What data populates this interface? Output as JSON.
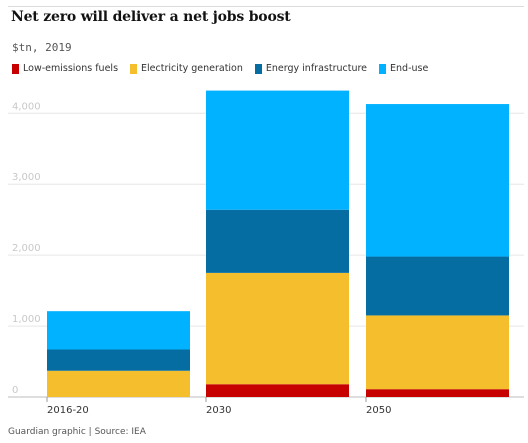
{
  "header": {
    "title": "Net zero will deliver a net jobs boost",
    "subtitle": "$tn, 2019"
  },
  "footer": {
    "source": "Guardian graphic | Source: IEA"
  },
  "chart_data": {
    "type": "bar",
    "stacked": true,
    "title": "Net zero will deliver a net jobs boost",
    "subtitle": "$tn, 2019",
    "categories": [
      "2016-20",
      "2030",
      "2050"
    ],
    "series": [
      {
        "name": "Low-emissions fuels",
        "color": "#c70000",
        "values": [
          0,
          180,
          110
        ]
      },
      {
        "name": "Electricity generation",
        "color": "#f5be2c",
        "values": [
          370,
          1570,
          1040
        ]
      },
      {
        "name": "Energy infrastructure",
        "color": "#056da1",
        "values": [
          300,
          890,
          830
        ]
      },
      {
        "name": "End-use",
        "color": "#00b2ff",
        "values": [
          540,
          1680,
          2150
        ]
      }
    ],
    "y_ticks": [
      0,
      1000,
      2000,
      3000,
      4000
    ],
    "y_tick_labels": [
      "0",
      "1,000",
      "2,000",
      "3,000",
      "4,000"
    ],
    "ylim": [
      0,
      4300
    ],
    "grid": true,
    "legend_position": "top"
  }
}
